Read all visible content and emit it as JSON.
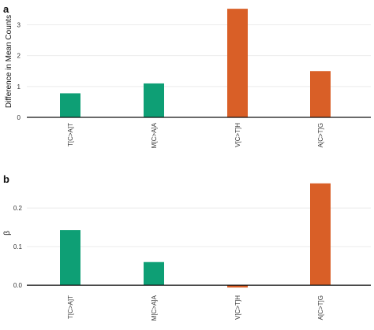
{
  "chart_data": [
    {
      "type": "bar",
      "panel_label": "a",
      "categories": [
        "T[C>A]T",
        "M[C>A]A",
        "V[C>T]H",
        "A[C>T]G"
      ],
      "values": [
        0.78,
        1.1,
        3.52,
        1.5
      ],
      "colors": [
        "#0e9f75",
        "#0e9f75",
        "#d95f27",
        "#d95f27"
      ],
      "ylabel": "Difference in Mean Counts",
      "yticks": [
        0,
        1,
        2,
        3
      ],
      "ylim": [
        0,
        3.6
      ],
      "grid": true
    },
    {
      "type": "bar",
      "panel_label": "b",
      "categories": [
        "T[C>A]T",
        "M[C>A]A",
        "V[C>T]H",
        "A[C>T]G"
      ],
      "values": [
        0.143,
        0.06,
        -0.006,
        0.264
      ],
      "colors": [
        "#0e9f75",
        "#0e9f75",
        "#d95f27",
        "#d95f27"
      ],
      "ylabel": "β",
      "yticks": [
        0.0,
        0.1,
        0.2
      ],
      "ytick_labels": [
        "0.0",
        "0.1",
        "0.2"
      ],
      "ylim": [
        -0.012,
        0.28
      ],
      "grid": true
    }
  ]
}
